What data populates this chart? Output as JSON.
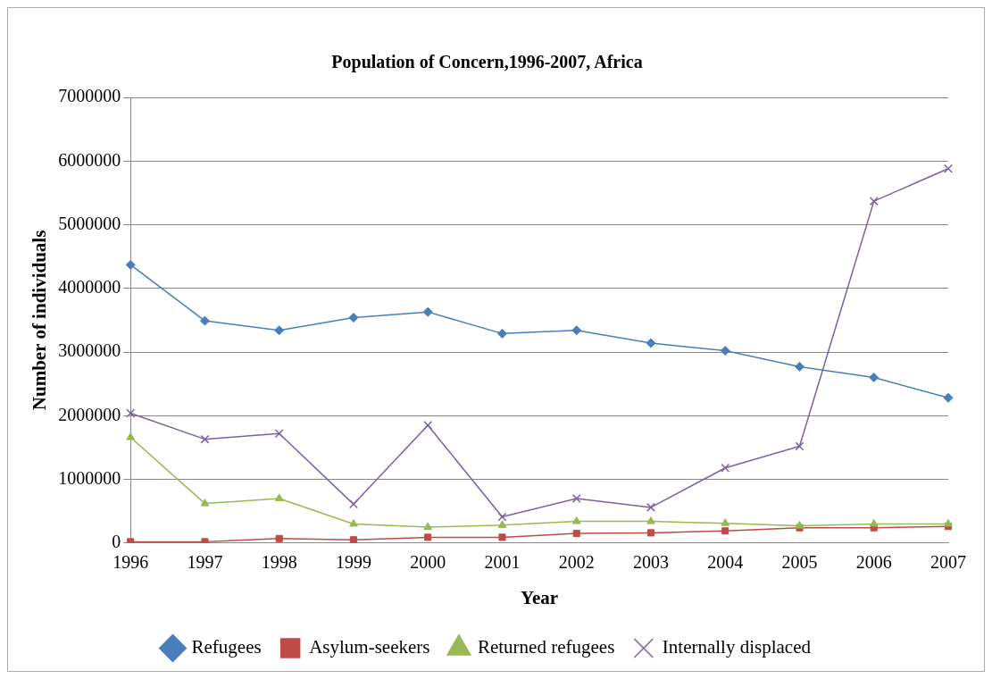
{
  "chart_data": {
    "type": "line",
    "title": "Population of Concern,1996-2007, Africa",
    "xlabel": "Year",
    "ylabel": "Number of individuals",
    "categories": [
      "1996",
      "1997",
      "1998",
      "1999",
      "2000",
      "2001",
      "2002",
      "2003",
      "2004",
      "2005",
      "2006",
      "2007"
    ],
    "series": [
      {
        "name": "Refugees",
        "color": "#4a7ebb",
        "marker": "diamond",
        "values": [
          4370000,
          3490000,
          3340000,
          3540000,
          3630000,
          3290000,
          3340000,
          3140000,
          3020000,
          2770000,
          2600000,
          2280000
        ]
      },
      {
        "name": "Asylum-seekers",
        "color": "#be4b48",
        "marker": "square",
        "values": [
          20000,
          20000,
          70000,
          50000,
          90000,
          90000,
          150000,
          160000,
          190000,
          240000,
          240000,
          260000
        ]
      },
      {
        "name": "Returned refugees",
        "color": "#98b954",
        "marker": "triangle",
        "values": [
          1660000,
          620000,
          700000,
          300000,
          250000,
          280000,
          340000,
          340000,
          310000,
          270000,
          300000,
          300000
        ]
      },
      {
        "name": "Internally displaced",
        "color": "#7d60a0",
        "marker": "cross",
        "values": [
          2040000,
          1630000,
          1720000,
          610000,
          1850000,
          410000,
          700000,
          560000,
          1180000,
          1520000,
          5370000,
          5880000
        ]
      }
    ],
    "ylim": [
      0,
      7000000
    ],
    "yticks": [
      0,
      1000000,
      2000000,
      3000000,
      4000000,
      5000000,
      6000000,
      7000000
    ],
    "grid": "y",
    "legend": "bottom",
    "line_style": "solid"
  }
}
